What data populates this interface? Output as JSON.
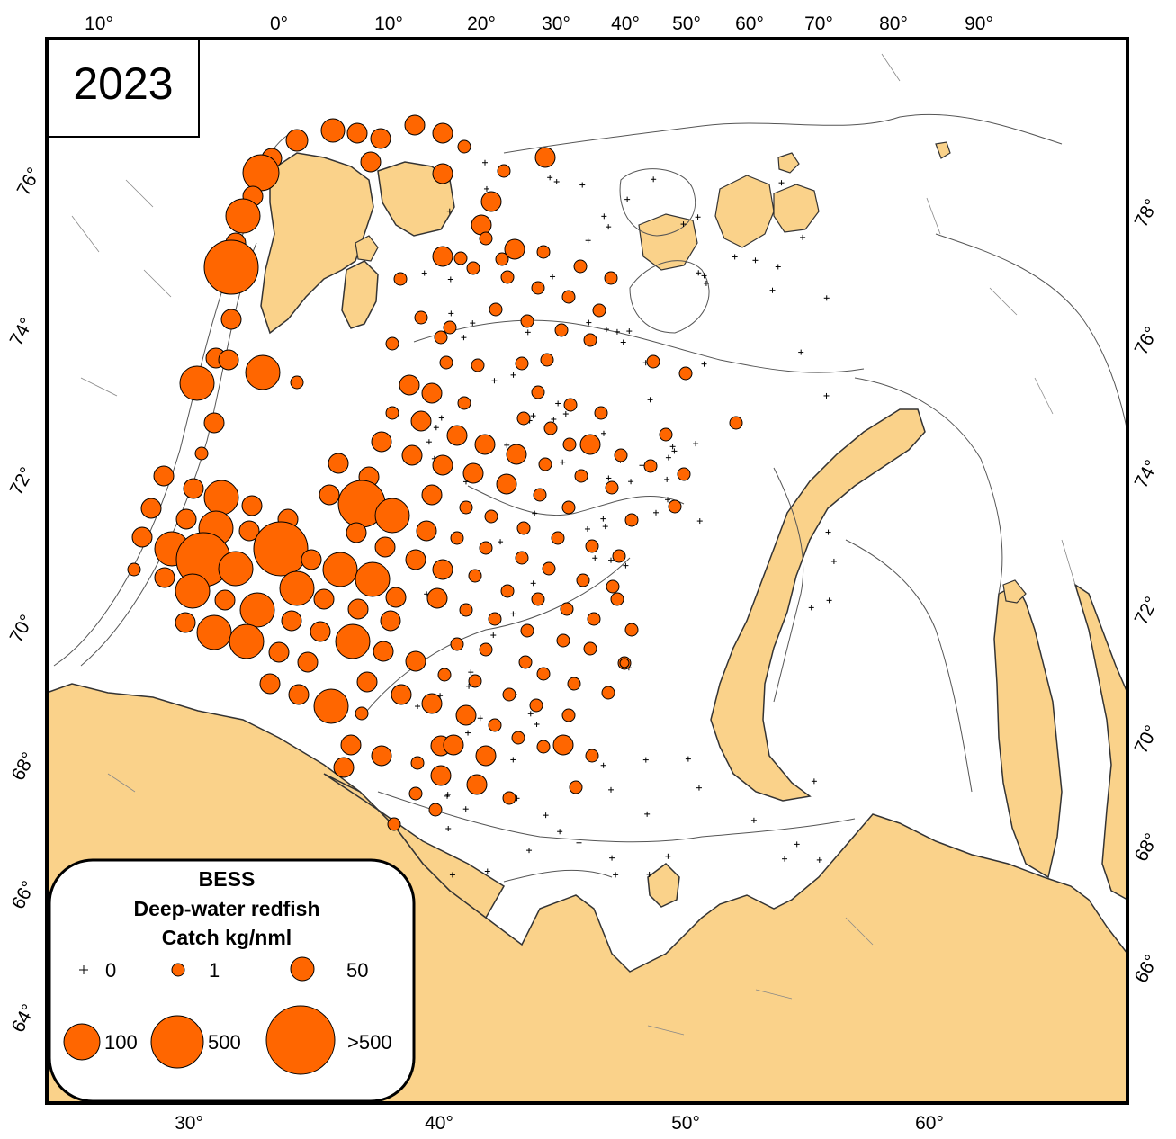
{
  "year_label": "2023",
  "top_lon_labels": [
    "10°",
    "0°",
    "10°",
    "20°",
    "30°",
    "40°",
    "50°",
    "60°",
    "70°",
    "80°",
    "90°"
  ],
  "bottom_lon_labels": [
    "30°",
    "40°",
    "50°",
    "60°"
  ],
  "left_lat_labels": [
    "76°",
    "74°",
    "72°",
    "70°",
    "68°",
    "66°",
    "64°"
  ],
  "right_lat_labels": [
    "78°",
    "76°",
    "74°",
    "72°",
    "70°",
    "68°",
    "66°"
  ],
  "legend": {
    "title_line1": "BESS",
    "title_line2": "Deep-water redfish",
    "title_line3": "Catch kg/nml",
    "classes": [
      {
        "label": "0",
        "symbol": "cross"
      },
      {
        "label": "1",
        "symbol": "circle"
      },
      {
        "label": "50",
        "symbol": "circle"
      },
      {
        "label": "100",
        "symbol": "circle"
      },
      {
        "label": "500",
        "symbol": "circle"
      },
      {
        "label": ">500",
        "symbol": "circle"
      }
    ]
  },
  "colors": {
    "catch_marker": "#ff6600",
    "land": "#fad28a",
    "sea": "#ffffff",
    "contour": "#555555"
  }
}
